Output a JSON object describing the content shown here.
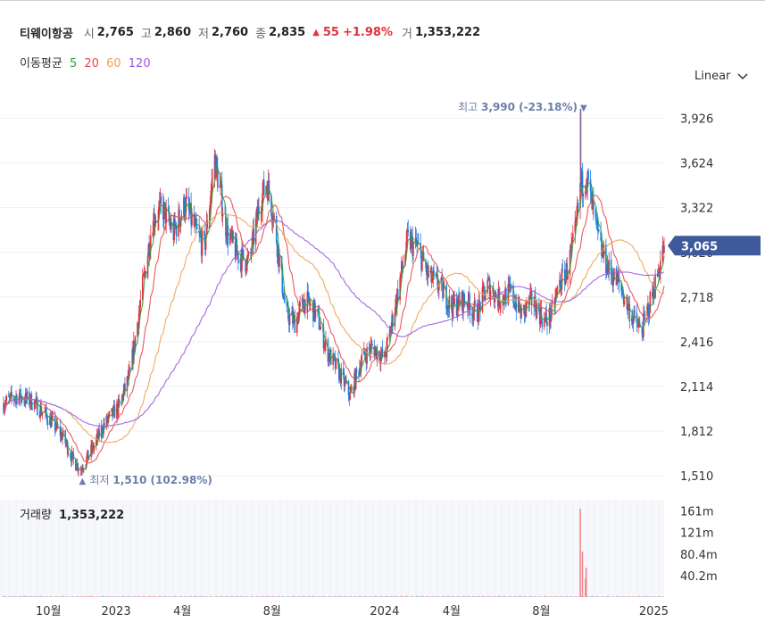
{
  "header": {
    "name": "티웨이항공",
    "open_label": "시",
    "open": "2,765",
    "high_label": "고",
    "high": "2,860",
    "low_label": "저",
    "low": "2,760",
    "close_label": "종",
    "close": "2,835",
    "change_arrow": "▲",
    "change": "55",
    "change_pct": "+1.98%",
    "volume_label": "거",
    "volume": "1,353,222"
  },
  "ma_legend": {
    "label": "이동평균",
    "items": [
      {
        "period": "5",
        "color": "#2ea043"
      },
      {
        "period": "20",
        "color": "#e5484d"
      },
      {
        "period": "60",
        "color": "#f0a050"
      },
      {
        "period": "120",
        "color": "#9b59e6"
      }
    ]
  },
  "scale_button": {
    "label": "Linear",
    "icon": "chevron-down-icon"
  },
  "volume_panel": {
    "title": "거래량",
    "value": "1,353,222"
  },
  "colors": {
    "up": "#e0323c",
    "down": "#1e7fe0",
    "current_tag": "#3e5a9a",
    "annotation": "#6b7fa8"
  },
  "chart_data": {
    "type": "candlestick",
    "y_ticks": [
      "3,926",
      "3,624",
      "3,322",
      "3,020",
      "2,718",
      "2,416",
      "2,114",
      "1,812",
      "1,510"
    ],
    "y_tick_values": [
      3926,
      3624,
      3322,
      3020,
      2718,
      2416,
      2114,
      1812,
      1510
    ],
    "ylim": [
      1420,
      4050
    ],
    "x_ticks": [
      "10월",
      "2023",
      "4월",
      "8월",
      "2024",
      "4월",
      "8월",
      "2025"
    ],
    "x_tick_dates": [
      "2022-10-01",
      "2023-01-01",
      "2023-04-01",
      "2023-08-01",
      "2024-01-01",
      "2024-04-01",
      "2024-08-01",
      "2025-01-01"
    ],
    "x_range": [
      "2022-08-01",
      "2025-01-15"
    ],
    "current_price": {
      "label": "3,065",
      "value": 3065
    },
    "max_annotation": {
      "label": "최고",
      "value": "3,990",
      "pct": "(-23.18%)",
      "arrow": "▼",
      "date": "2024-09-23",
      "price": 3990
    },
    "min_annotation": {
      "label": "최저",
      "value": "1,510",
      "pct": "(102.98%)",
      "arrow": "▲",
      "date": "2022-11-14",
      "price": 1510
    },
    "close_series_keypoints": [
      [
        "2022-08-01",
        2000
      ],
      [
        "2022-08-20",
        2050
      ],
      [
        "2022-09-10",
        2010
      ],
      [
        "2022-10-01",
        1900
      ],
      [
        "2022-10-20",
        1780
      ],
      [
        "2022-11-05",
        1600
      ],
      [
        "2022-11-14",
        1560
      ],
      [
        "2022-12-01",
        1700
      ],
      [
        "2022-12-15",
        1850
      ],
      [
        "2023-01-05",
        1980
      ],
      [
        "2023-01-20",
        2200
      ],
      [
        "2023-02-05",
        2750
      ],
      [
        "2023-02-20",
        3250
      ],
      [
        "2023-03-05",
        3320
      ],
      [
        "2023-03-20",
        3150
      ],
      [
        "2023-04-05",
        3350
      ],
      [
        "2023-04-20",
        3150
      ],
      [
        "2023-05-01",
        3050
      ],
      [
        "2023-05-15",
        3650
      ],
      [
        "2023-06-01",
        3150
      ],
      [
        "2023-06-15",
        3000
      ],
      [
        "2023-07-01",
        2950
      ],
      [
        "2023-07-15",
        3350
      ],
      [
        "2023-07-25",
        3500
      ],
      [
        "2023-08-05",
        3200
      ],
      [
        "2023-08-20",
        2600
      ],
      [
        "2023-09-01",
        2550
      ],
      [
        "2023-09-15",
        2700
      ],
      [
        "2023-10-01",
        2600
      ],
      [
        "2023-10-15",
        2350
      ],
      [
        "2023-11-01",
        2200
      ],
      [
        "2023-11-15",
        2050
      ],
      [
        "2023-12-01",
        2300
      ],
      [
        "2023-12-15",
        2380
      ],
      [
        "2024-01-01",
        2300
      ],
      [
        "2024-01-15",
        2650
      ],
      [
        "2024-02-01",
        3100
      ],
      [
        "2024-02-15",
        3050
      ],
      [
        "2024-03-01",
        2850
      ],
      [
        "2024-03-15",
        2800
      ],
      [
        "2024-04-01",
        2650
      ],
      [
        "2024-04-20",
        2700
      ],
      [
        "2024-05-05",
        2600
      ],
      [
        "2024-05-20",
        2800
      ],
      [
        "2024-06-05",
        2700
      ],
      [
        "2024-06-20",
        2750
      ],
      [
        "2024-07-05",
        2600
      ],
      [
        "2024-07-20",
        2700
      ],
      [
        "2024-08-05",
        2550
      ],
      [
        "2024-08-15",
        2600
      ],
      [
        "2024-08-25",
        2800
      ],
      [
        "2024-09-05",
        2900
      ],
      [
        "2024-09-15",
        3100
      ],
      [
        "2024-09-23",
        3450
      ],
      [
        "2024-10-01",
        3550
      ],
      [
        "2024-10-10",
        3300
      ],
      [
        "2024-10-20",
        3050
      ],
      [
        "2024-11-01",
        2900
      ],
      [
        "2024-11-15",
        2800
      ],
      [
        "2024-12-01",
        2600
      ],
      [
        "2024-12-15",
        2480
      ],
      [
        "2024-12-25",
        2650
      ],
      [
        "2025-01-05",
        2850
      ],
      [
        "2025-01-15",
        3065
      ]
    ],
    "volume_ticks": [
      "161m",
      "121m",
      "80.4m",
      "40.2m"
    ],
    "volume_tick_values": [
      161,
      121,
      80.4,
      40.2
    ],
    "volume_ylim": [
      0,
      182
    ],
    "volume_spikes": [
      [
        "2024-09-23",
        165
      ],
      [
        "2024-09-26",
        85
      ],
      [
        "2024-10-01",
        55
      ],
      [
        "2024-09-30",
        35
      ]
    ]
  }
}
